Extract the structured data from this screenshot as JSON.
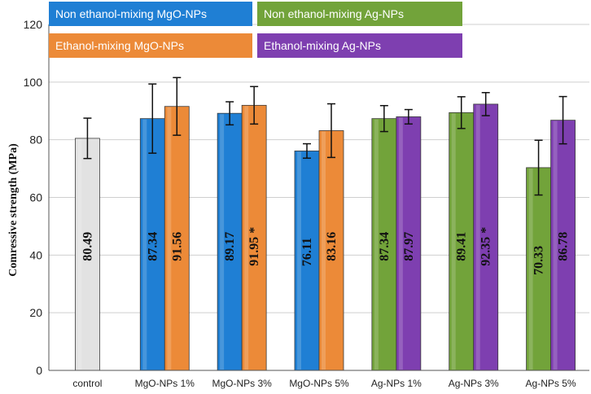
{
  "chart_data": {
    "type": "bar",
    "title": "",
    "xlabel": "",
    "ylabel": "Comressive strength (MPa)",
    "ylim": [
      0,
      120
    ],
    "yticks": [
      0,
      20,
      40,
      60,
      80,
      100,
      120
    ],
    "grid": true,
    "categories": [
      "control",
      "MgO-NPs 1%",
      "MgO-NPs 3%",
      "MgO-NPs 5%",
      "Ag-NPs 1%",
      "Ag-NPs 3%",
      "Ag-NPs 5%"
    ],
    "series": [
      {
        "name": "control",
        "color": "#e2e2e2",
        "values": [
          80.49,
          null,
          null,
          null,
          null,
          null,
          null
        ],
        "labels": [
          "80.49",
          null,
          null,
          null,
          null,
          null,
          null
        ],
        "errors": [
          7,
          null,
          null,
          null,
          null,
          null,
          null
        ]
      },
      {
        "name": "Non ethanol-mixing MgO-NPs",
        "color": "#1f7fd4",
        "values": [
          null,
          87.34,
          89.17,
          76.11,
          null,
          null,
          null
        ],
        "labels": [
          null,
          "87.34",
          "89.17",
          "76.11",
          null,
          null,
          null
        ],
        "errors": [
          null,
          12,
          4,
          2.5,
          null,
          null,
          null
        ]
      },
      {
        "name": "Ethanol-mixing MgO-NPs",
        "color": "#ec8a38",
        "values": [
          null,
          91.56,
          91.95,
          83.16,
          null,
          null,
          null
        ],
        "labels": [
          null,
          "91.56",
          "91.95  *",
          "83.16",
          null,
          null,
          null
        ],
        "errors": [
          null,
          10,
          6.5,
          9.3,
          null,
          null,
          null
        ]
      },
      {
        "name": "Non ethanol-mixing  Ag-NPs",
        "color": "#72a33a",
        "values": [
          null,
          null,
          null,
          null,
          87.34,
          89.41,
          70.33
        ],
        "labels": [
          null,
          null,
          null,
          null,
          "87.34",
          "89.41",
          "70.33"
        ],
        "errors": [
          null,
          null,
          null,
          null,
          4.5,
          5.5,
          9.5
        ]
      },
      {
        "name": "Ethanol-mixing  Ag-NPs",
        "color": "#7e3fb0",
        "values": [
          null,
          null,
          null,
          null,
          87.97,
          92.35,
          86.78
        ],
        "labels": [
          null,
          null,
          null,
          null,
          "87.97",
          "92.35  *",
          "86.78"
        ],
        "errors": [
          null,
          null,
          null,
          null,
          2.5,
          4,
          8.2
        ]
      }
    ]
  },
  "legend": [
    {
      "label": "Non ethanol-mixing MgO-NPs",
      "color": "#1f7fd4"
    },
    {
      "label": "Ethanol-mixing MgO-NPs",
      "color": "#ec8a38"
    },
    {
      "label": "Non ethanol-mixing  Ag-NPs",
      "color": "#72a33a"
    },
    {
      "label": "Ethanol-mixing  Ag-NPs",
      "color": "#7e3fb0"
    }
  ]
}
